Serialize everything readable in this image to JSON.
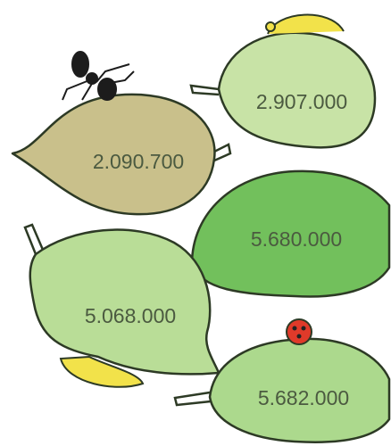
{
  "leaves": [
    {
      "label": "2.090.700"
    },
    {
      "label": "2.907.000"
    },
    {
      "label": "5.680.000"
    },
    {
      "label": "5.068.000"
    },
    {
      "label": "5.682.000"
    }
  ]
}
